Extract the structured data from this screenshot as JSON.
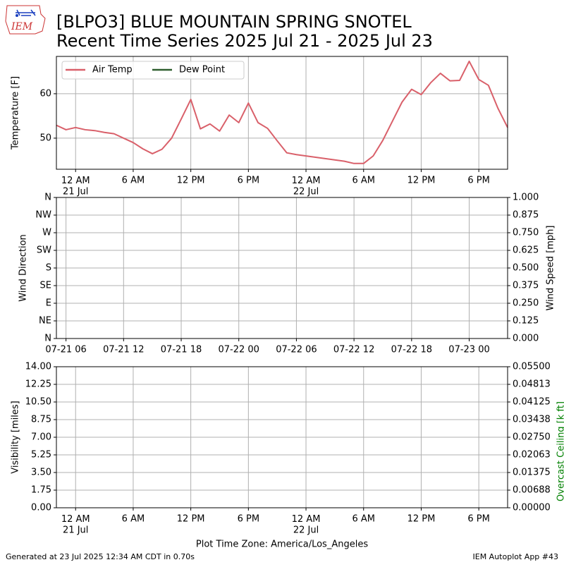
{
  "header": {
    "title": "[BLPO3] BLUE MOUNTAIN SPRING SNOTEL",
    "subtitle": "Recent Time Series 2025 Jul 21 - 2025 Jul 23",
    "logo": "IEM"
  },
  "footer": {
    "left": "Generated at 23 Jul 2025 12:34 AM CDT in 0.70s",
    "right": "IEM Autoplot App #43"
  },
  "chart_data": [
    {
      "type": "line",
      "ylabel": "Temperature [F]",
      "grid": true,
      "legend": "upper left",
      "x": [
        "2025-07-20 22:00",
        "2025-07-20 23:00",
        "2025-07-21 00:00",
        "2025-07-21 01:00",
        "2025-07-21 02:00",
        "2025-07-21 03:00",
        "2025-07-21 04:00",
        "2025-07-21 05:00",
        "2025-07-21 06:00",
        "2025-07-21 07:00",
        "2025-07-21 08:00",
        "2025-07-21 09:00",
        "2025-07-21 10:00",
        "2025-07-21 11:00",
        "2025-07-21 12:00",
        "2025-07-21 13:00",
        "2025-07-21 14:00",
        "2025-07-21 15:00",
        "2025-07-21 16:00",
        "2025-07-21 17:00",
        "2025-07-21 18:00",
        "2025-07-21 19:00",
        "2025-07-21 20:00",
        "2025-07-21 21:00",
        "2025-07-21 22:00",
        "2025-07-21 23:00",
        "2025-07-22 00:00",
        "2025-07-22 01:00",
        "2025-07-22 02:00",
        "2025-07-22 03:00",
        "2025-07-22 04:00",
        "2025-07-22 05:00",
        "2025-07-22 06:00",
        "2025-07-22 07:00",
        "2025-07-22 08:00",
        "2025-07-22 09:00",
        "2025-07-22 10:00",
        "2025-07-22 11:00",
        "2025-07-22 12:00",
        "2025-07-22 13:00",
        "2025-07-22 14:00",
        "2025-07-22 15:00",
        "2025-07-22 16:00",
        "2025-07-22 17:00",
        "2025-07-22 18:00",
        "2025-07-22 19:00",
        "2025-07-22 20:00",
        "2025-07-22 21:00"
      ],
      "series": [
        {
          "name": "Air Temp",
          "color": "#d9606a",
          "values": [
            52.9,
            51.9,
            52.4,
            51.9,
            51.7,
            51.3,
            51.0,
            50.0,
            49.0,
            47.6,
            46.5,
            47.5,
            50.0,
            54.3,
            58.7,
            52.1,
            53.2,
            51.6,
            55.2,
            53.5,
            57.9,
            53.5,
            52.2,
            49.4,
            46.7,
            46.3,
            46.0,
            45.7,
            45.4,
            45.1,
            44.8,
            44.3,
            44.3,
            46.0,
            49.5,
            53.8,
            58.1,
            61.0,
            59.8,
            62.5,
            64.6,
            62.9,
            63.0,
            67.3,
            63.2,
            61.9,
            56.7,
            52.4
          ]
        },
        {
          "name": "Dew Point",
          "color": "#2e5e2e",
          "values": [
            null,
            null,
            null,
            null,
            null,
            null,
            null,
            null,
            null,
            null,
            null,
            null,
            null,
            null,
            null,
            null,
            null,
            null,
            null,
            null,
            null,
            null,
            null,
            null,
            null,
            null,
            null,
            null,
            null,
            null,
            null,
            null,
            null,
            null,
            null,
            null,
            null,
            null,
            null,
            null,
            null,
            null,
            null,
            null,
            null,
            null,
            null,
            null
          ]
        }
      ],
      "xlim": [
        "2025-07-20 22:00",
        "2025-07-22 21:00"
      ],
      "xticks": [
        {
          "value": "2025-07-21 00:00",
          "label": "12 AM\n21 Jul"
        },
        {
          "value": "2025-07-21 06:00",
          "label": "6 AM"
        },
        {
          "value": "2025-07-21 12:00",
          "label": "12 PM"
        },
        {
          "value": "2025-07-21 18:00",
          "label": "6 PM"
        },
        {
          "value": "2025-07-22 00:00",
          "label": "12 AM\n22 Jul"
        },
        {
          "value": "2025-07-22 06:00",
          "label": "6 AM"
        },
        {
          "value": "2025-07-22 12:00",
          "label": "12 PM"
        },
        {
          "value": "2025-07-22 18:00",
          "label": "6 PM"
        }
      ],
      "ylim": [
        43.0,
        68.4
      ],
      "yticks": [
        50,
        60
      ]
    },
    {
      "type": "line",
      "ylabel": "Wind Direction",
      "y2label": "Wind Speed [mph]",
      "grid": true,
      "series": [],
      "xlim": [
        "2025-07-21 05:00",
        "2025-07-23 04:00"
      ],
      "xticks": [
        {
          "value": "2025-07-21 06:00",
          "label": "07-21 06"
        },
        {
          "value": "2025-07-21 12:00",
          "label": "07-21 12"
        },
        {
          "value": "2025-07-21 18:00",
          "label": "07-21 18"
        },
        {
          "value": "2025-07-22 00:00",
          "label": "07-22 00"
        },
        {
          "value": "2025-07-22 06:00",
          "label": "07-22 06"
        },
        {
          "value": "2025-07-22 12:00",
          "label": "07-22 12"
        },
        {
          "value": "2025-07-22 18:00",
          "label": "07-22 18"
        },
        {
          "value": "2025-07-23 00:00",
          "label": "07-23 00"
        }
      ],
      "ylim": [
        0,
        360
      ],
      "yticks": [
        {
          "value": 0,
          "label": "N"
        },
        {
          "value": 45,
          "label": "NE"
        },
        {
          "value": 90,
          "label": "E"
        },
        {
          "value": 135,
          "label": "SE"
        },
        {
          "value": 180,
          "label": "S"
        },
        {
          "value": 225,
          "label": "SW"
        },
        {
          "value": 270,
          "label": "W"
        },
        {
          "value": 315,
          "label": "NW"
        },
        {
          "value": 360,
          "label": "N"
        }
      ],
      "y2lim": [
        0,
        1
      ],
      "y2ticks": [
        {
          "value": 0,
          "label": "0.000"
        },
        0.125,
        {
          "value": 0.25,
          "label": "0.250"
        },
        0.375,
        {
          "value": 0.5,
          "label": "0.500"
        },
        0.625,
        {
          "value": 0.75,
          "label": "0.750"
        },
        0.875,
        {
          "value": 1,
          "label": "1.000"
        }
      ]
    },
    {
      "type": "line",
      "ylabel": "Visibility [miles]",
      "y2label": "Overcast Ceiling [k ft]",
      "y2label_color": "green",
      "xlabel": "Plot Time Zone: America/Los_Angeles",
      "grid": true,
      "series": [],
      "xlim": [
        "2025-07-20 22:00",
        "2025-07-22 21:00"
      ],
      "xticks": [
        {
          "value": "2025-07-21 00:00",
          "label": "12 AM\n21 Jul"
        },
        {
          "value": "2025-07-21 06:00",
          "label": "6 AM"
        },
        {
          "value": "2025-07-21 12:00",
          "label": "12 PM"
        },
        {
          "value": "2025-07-21 18:00",
          "label": "6 PM"
        },
        {
          "value": "2025-07-22 00:00",
          "label": "12 AM\n22 Jul"
        },
        {
          "value": "2025-07-22 06:00",
          "label": "6 AM"
        },
        {
          "value": "2025-07-22 12:00",
          "label": "12 PM"
        },
        {
          "value": "2025-07-22 18:00",
          "label": "6 PM"
        }
      ],
      "ylim": [
        0,
        14
      ],
      "yticks": [
        {
          "value": 0,
          "label": "0.00"
        },
        1.75,
        {
          "value": 3.5,
          "label": "3.50"
        },
        5.25,
        {
          "value": 7,
          "label": "7.00"
        },
        8.75,
        {
          "value": 10.5,
          "label": "10.50"
        },
        12.25,
        {
          "value": 14,
          "label": "14.00"
        }
      ],
      "y2lim": [
        0,
        0.055
      ],
      "y2ticks": [
        {
          "value": 0,
          "label": "0.00000"
        },
        {
          "value": 0.006875,
          "label": "0.00688"
        },
        0.01375,
        {
          "value": 0.020625,
          "label": "0.02063"
        },
        {
          "value": 0.0275,
          "label": "0.02750"
        },
        {
          "value": 0.034375,
          "label": "0.03438"
        },
        {
          "value": 0.04125,
          "label": "0.04125"
        },
        {
          "value": 0.048125,
          "label": "0.04813"
        },
        {
          "value": 0.055,
          "label": "0.05500"
        }
      ]
    }
  ]
}
